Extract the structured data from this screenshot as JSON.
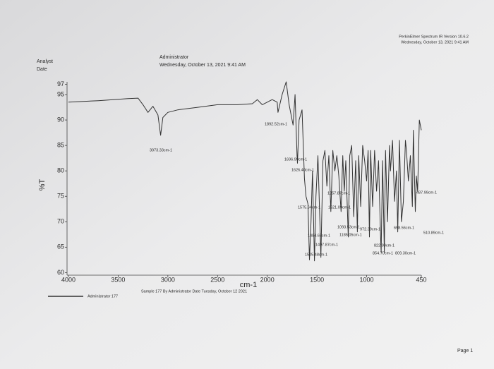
{
  "header": {
    "analyst": "Analyst",
    "date": "Date",
    "user": "Administrator",
    "timestamp": "Wednesday, October 13, 2021 9:41 AM",
    "software": "PerkinElmer Spectrum IR Version 10.6.2",
    "software_date": "Wednesday, October 13, 2021 9:41 AM"
  },
  "footer": {
    "sample": "Sample 177 By Administrator Date Tuesday, October 12 2021",
    "page": "Page 1"
  },
  "chart_data": {
    "type": "line",
    "x_label": "cm-1",
    "y_label": "%T",
    "xlim": [
      4000,
      450
    ],
    "ylim": [
      59.5,
      97.5
    ],
    "xticks": [
      4000,
      3500,
      3000,
      2500,
      2000,
      1500,
      1000,
      450
    ],
    "yticks": [
      60,
      65,
      70,
      75,
      80,
      85,
      90,
      95,
      97
    ],
    "annotations": [
      "3073.33cm-1",
      "1892.52cm-1",
      "1696.99cm-1",
      "1626.40cm-1",
      "1575.64cm-1",
      "1521.09cm-1",
      "1257.87cm-1",
      "1093.53cm-1",
      "1185.05cm-1",
      "1484.63cm-1",
      "1497.87cm-1",
      "1525.48cm-1",
      "822.99cm-1",
      "854.70cm-1",
      "809.30cm-1",
      "510.89cm-1",
      "487.99cm-1",
      "658.56cm-1",
      "972.39cm-1"
    ],
    "series": [
      {
        "name": "Administrator 177",
        "color": "#333333",
        "x": [
          4000,
          3700,
          3400,
          3300,
          3250,
          3200,
          3150,
          3100,
          3073,
          3050,
          3000,
          2900,
          2700,
          2500,
          2300,
          2150,
          2100,
          2050,
          2000,
          1950,
          1900,
          1892,
          1850,
          1810,
          1780,
          1760,
          1740,
          1720,
          1700,
          1696,
          1680,
          1650,
          1626,
          1610,
          1590,
          1575,
          1560,
          1545,
          1525,
          1510,
          1490,
          1470,
          1460,
          1440,
          1420,
          1400,
          1380,
          1360,
          1340,
          1320,
          1300,
          1280,
          1257,
          1240,
          1225,
          1210,
          1185,
          1170,
          1150,
          1130,
          1110,
          1093,
          1080,
          1060,
          1040,
          1020,
          1000,
          985,
          972,
          960,
          940,
          920,
          900,
          880,
          860,
          854,
          840,
          822,
          810,
          790,
          770,
          760,
          740,
          720,
          700,
          687,
          670,
          650,
          630,
          610,
          600,
          580,
          560,
          540,
          530,
          510,
          500,
          487,
          470,
          450
        ],
        "values": [
          93.5,
          93.8,
          94.2,
          94.3,
          93,
          91.5,
          92.7,
          91,
          87,
          90.5,
          91.5,
          92,
          92.5,
          93,
          93,
          93.2,
          94,
          93,
          93.5,
          94,
          93.5,
          91.5,
          95,
          97.5,
          93,
          91,
          89,
          95,
          83,
          81.5,
          90,
          92,
          78.5,
          75,
          73.5,
          62.5,
          70,
          80,
          62.3,
          75,
          83,
          70,
          63,
          82,
          84,
          77,
          83,
          72,
          84,
          80,
          83,
          79,
          72,
          83,
          76,
          82,
          67,
          83,
          85,
          71,
          82,
          68,
          83,
          73,
          85,
          82,
          78,
          84,
          67,
          84,
          73,
          84,
          76,
          82,
          67,
          64,
          82,
          64,
          84,
          70,
          85,
          80,
          86,
          74,
          80,
          68,
          86,
          70,
          74,
          86,
          84,
          78,
          83,
          73,
          88,
          72,
          79,
          76,
          90,
          88
        ]
      }
    ]
  }
}
